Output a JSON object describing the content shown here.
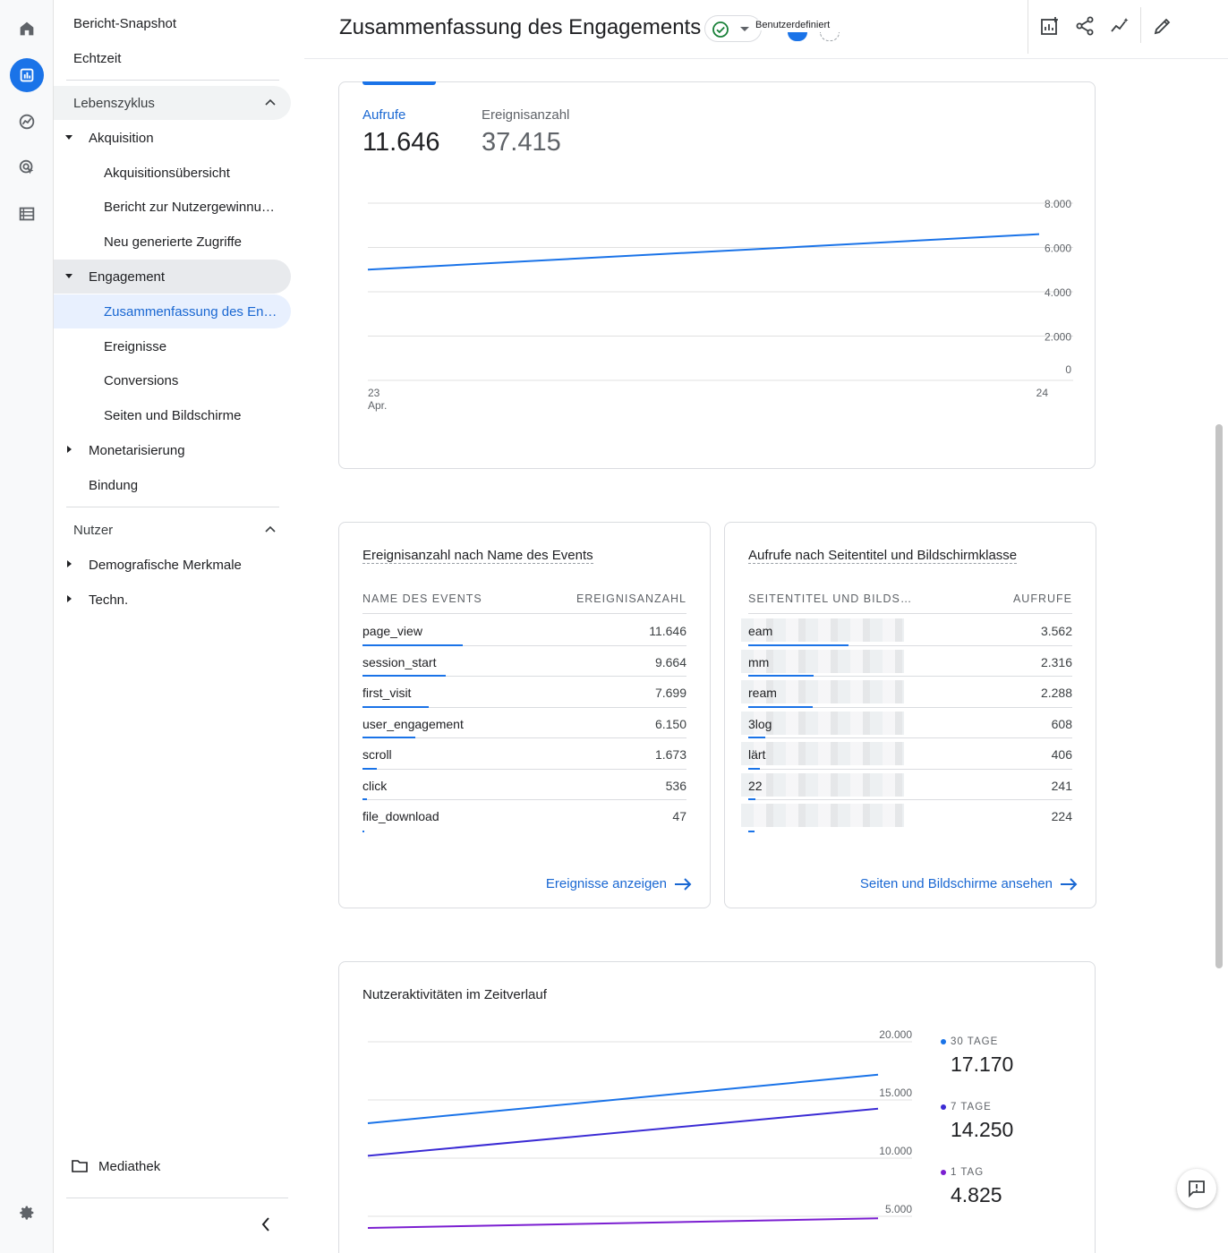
{
  "nav": {
    "snapshot": "Bericht-Snapshot",
    "realtime": "Echtzeit",
    "lifecycle": "Lebenszyklus",
    "acquisition": "Akquisition",
    "acq_overview": "Akquisitionsübersicht",
    "user_acq": "Bericht zur Nutzergewinnu…",
    "traffic_acq": "Neu generierte Zugriffe",
    "engagement": "Engagement",
    "eng_overview": "Zusammenfassung des En…",
    "events": "Ereignisse",
    "conversions": "Conversions",
    "pages": "Seiten und Bildschirme",
    "monetization": "Monetarisierung",
    "retention": "Bindung",
    "user": "Nutzer",
    "demographics": "Demografische Merkmale",
    "tech": "Techn.",
    "library": "Mediathek"
  },
  "header": {
    "title": "Zusammenfassung des Engagements",
    "custom_label": "Benutzerdefiniert"
  },
  "overview": {
    "metric1_label": "Aufrufe",
    "metric1_value": "11.646",
    "metric2_label": "Ereignisanzahl",
    "metric2_value": "37.415",
    "y_ticks": [
      "8.000",
      "6.000",
      "4.000",
      "2.000",
      "0"
    ],
    "x_ticks": [
      "23",
      "24"
    ],
    "x_month": "Apr."
  },
  "events_card": {
    "title": "Ereignisanzahl nach Name des Events",
    "col1": "NAME DES EVENTS",
    "col2": "EREIGNISANZAHL",
    "rows": [
      {
        "name": "page_view",
        "value": "11.646"
      },
      {
        "name": "session_start",
        "value": "9.664"
      },
      {
        "name": "first_visit",
        "value": "7.699"
      },
      {
        "name": "user_engagement",
        "value": "6.150"
      },
      {
        "name": "scroll",
        "value": "1.673"
      },
      {
        "name": "click",
        "value": "536"
      },
      {
        "name": "file_download",
        "value": "47"
      }
    ],
    "link": "Ereignisse anzeigen"
  },
  "pages_card": {
    "title": "Aufrufe nach Seitentitel und Bildschirmklasse",
    "col1": "SEITENTITEL UND BILDS…",
    "col2": "AUFRUFE",
    "rows": [
      {
        "name": "eam",
        "value": "3.562"
      },
      {
        "name": "mm",
        "value": "2.316"
      },
      {
        "name": "ream",
        "value": "2.288"
      },
      {
        "name": "3log",
        "value": "608"
      },
      {
        "name": "lärt",
        "value": "406"
      },
      {
        "name": "22",
        "value": "241"
      },
      {
        "name": "",
        "value": "224"
      }
    ],
    "link": "Seiten und Bildschirme ansehen"
  },
  "activity_card": {
    "title": "Nutzeraktivitäten im Zeitverlauf",
    "y_ticks": [
      "20.000",
      "15.000",
      "10.000",
      "5.000"
    ],
    "legend": [
      {
        "label": "30 TAGE",
        "value": "17.170",
        "color": "#1a73e8"
      },
      {
        "label": "7 TAGE",
        "value": "14.250",
        "color": "#3b2bd4"
      },
      {
        "label": "1 TAG",
        "value": "4.825",
        "color": "#7b1fd1"
      }
    ]
  },
  "chart_data": [
    {
      "type": "line",
      "title": "",
      "x": [
        "23 Apr.",
        "24"
      ],
      "series": [
        {
          "name": "Aufrufe",
          "values": [
            5000,
            6600
          ]
        }
      ],
      "ylim": [
        0,
        8000
      ],
      "grid": true,
      "color": "#1a73e8"
    },
    {
      "type": "line",
      "title": "Nutzeraktivitäten im Zeitverlauf",
      "x": [
        "23 Apr.",
        "24"
      ],
      "series": [
        {
          "name": "30 TAGE",
          "values": [
            13000,
            17170
          ]
        },
        {
          "name": "7 TAGE",
          "values": [
            10200,
            14250
          ]
        },
        {
          "name": "1 TAG",
          "values": [
            4000,
            4825
          ]
        }
      ],
      "ylim": [
        5000,
        20000
      ],
      "grid": true
    }
  ]
}
